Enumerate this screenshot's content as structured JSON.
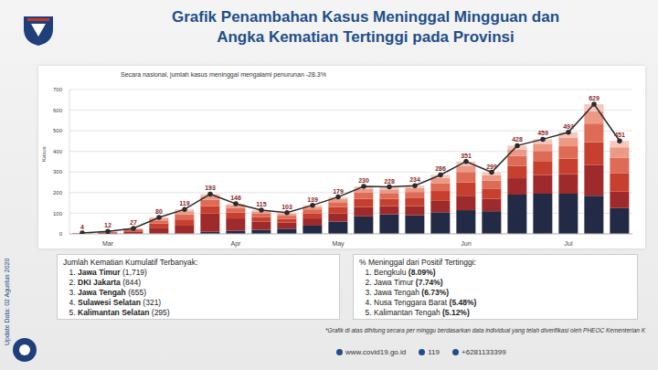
{
  "title": "Grafik Penambahan Kasus Meninggal Mingguan dan Angka Kematian Tertinggi pada Provinsi",
  "side_note": "Update Data: 02 Agustus 2020",
  "chart_data": {
    "type": "bar",
    "stacked": true,
    "grid": true,
    "annotation": "Secara nasional, jumlah kasus meninggal mengalami penurunan -28.3%",
    "y_label": "Kasus",
    "categories": [
      null,
      "Mar",
      null,
      null,
      null,
      null,
      "Apr",
      null,
      null,
      null,
      "May",
      null,
      null,
      null,
      null,
      "Jun",
      null,
      null,
      null,
      "Jul",
      null,
      null
    ],
    "ylim": [
      0,
      700
    ],
    "yticks": [
      0,
      100,
      200,
      300,
      400,
      500,
      600,
      700
    ],
    "series": [
      {
        "color": "#232a45",
        "values": [
          0,
          0,
          0,
          0,
          0,
          10,
          15,
          20,
          25,
          40,
          60,
          85,
          95,
          90,
          105,
          115,
          110,
          190,
          195,
          195,
          185,
          125
        ]
      },
      {
        "color": "#9e2a2b",
        "values": [
          2,
          5,
          10,
          30,
          40,
          90,
          60,
          40,
          30,
          35,
          40,
          45,
          40,
          45,
          55,
          70,
          60,
          80,
          90,
          95,
          150,
          80
        ]
      },
      {
        "color": "#c7402f",
        "values": [
          1,
          3,
          7,
          20,
          30,
          35,
          28,
          22,
          18,
          25,
          30,
          40,
          35,
          38,
          48,
          65,
          50,
          60,
          65,
          75,
          110,
          90
        ]
      },
      {
        "color": "#de6b55",
        "values": [
          1,
          2,
          5,
          15,
          25,
          30,
          22,
          17,
          15,
          19,
          24,
          30,
          28,
          30,
          38,
          50,
          39,
          48,
          52,
          60,
          90,
          75
        ]
      },
      {
        "color": "#ec9a86",
        "values": [
          0,
          1,
          3,
          10,
          15,
          18,
          13,
          10,
          9,
          12,
          15,
          18,
          18,
          19,
          25,
          31,
          25,
          32,
          35,
          40,
          60,
          50
        ]
      },
      {
        "color": "#f6c8bb",
        "values": [
          0,
          1,
          2,
          5,
          9,
          10,
          8,
          6,
          6,
          8,
          10,
          12,
          12,
          12,
          15,
          20,
          15,
          18,
          22,
          28,
          34,
          31
        ]
      },
      {
        "type": "line",
        "color": "#2b2b2b",
        "marker": "circle",
        "data_labels": true,
        "values": [
          4,
          12,
          27,
          80,
          119,
          193,
          146,
          115,
          103,
          139,
          179,
          230,
          228,
          234,
          286,
          351,
          299,
          428,
          459,
          493,
          629,
          451
        ]
      }
    ]
  },
  "panels": [
    {
      "heading": "Jumlah Kematian Kumulatif Terbanyak:",
      "items": [
        {
          "name": "Jawa Timur",
          "value": "(1,719)"
        },
        {
          "name": "DKI Jakarta",
          "value": "(844)"
        },
        {
          "name": "Jawa Tengah",
          "value": "(655)"
        },
        {
          "name": "Sulawesi Selatan",
          "value": "(321)"
        },
        {
          "name": "Kalimantan Selatan",
          "value": "(295)"
        }
      ]
    },
    {
      "heading": "% Meninggal dari Positif Tertinggi:",
      "items": [
        {
          "name": "Bengkulu",
          "value": "(8.09%)"
        },
        {
          "name": "Jawa Timur",
          "value": "(7.74%)"
        },
        {
          "name": "Jawa Tengah",
          "value": "(6.73%)"
        },
        {
          "name": "Nusa Tenggara Barat",
          "value": "(5.48%)"
        },
        {
          "name": "Kalimantan Tengah",
          "value": "(5.12%)"
        }
      ]
    }
  ],
  "footnote": "*Grafik di atas dihitung secara per minggu berdasarkan data individual yang telah diverifikasi oleh PHEOC Kementerian K",
  "footer": [
    "www.covid19.go.id",
    "119",
    "+6281133399"
  ]
}
